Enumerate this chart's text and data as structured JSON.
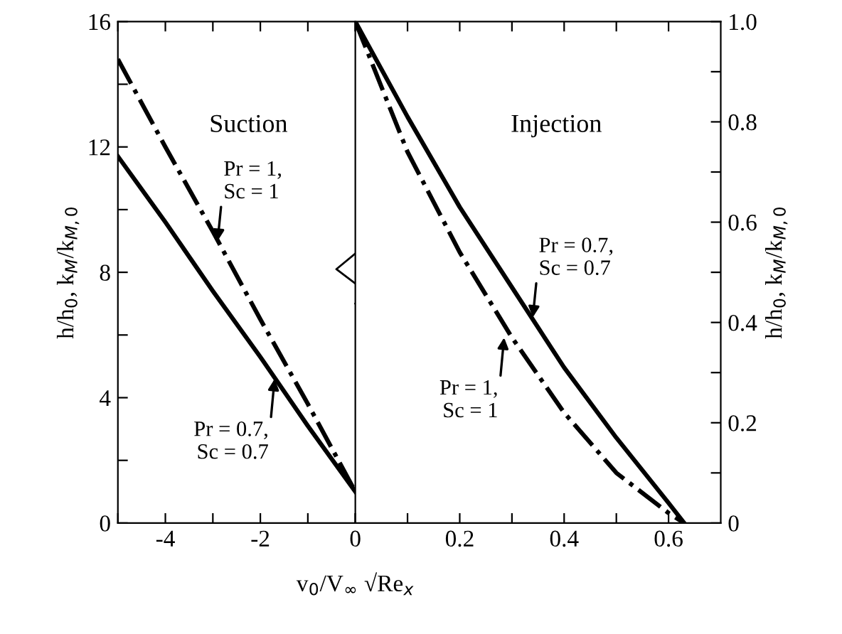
{
  "chart_data": [
    {
      "type": "line",
      "xlabel": "v$_{0}$/V$_{∞}$ √Re$_{x}$",
      "ylabel": "h/h$_{0}$, k$_{M}$/k$_{M,0}$",
      "xlim": [
        -5,
        0
      ],
      "ylim": [
        0,
        16
      ],
      "xticks": [
        {
          "value": -5,
          "label": null
        },
        -4,
        {
          "value": -3,
          "label": null
        },
        -2,
        {
          "value": -1,
          "label": null
        },
        0
      ],
      "yticks": [
        0,
        {
          "value": 2,
          "label": null
        },
        4,
        {
          "value": 6,
          "label": null
        },
        8,
        {
          "value": 10,
          "label": null
        },
        12,
        {
          "value": 14,
          "label": null
        },
        16
      ],
      "x": [
        -5,
        -4,
        -3,
        -2,
        -1,
        0
      ],
      "series": [
        {
          "color": "#000000",
          "line_style": "dashdot",
          "values": [
            14.8,
            12.0,
            9.3,
            6.5,
            3.8,
            1.0
          ]
        },
        {
          "color": "#000000",
          "line_style": "solid",
          "values": [
            11.7,
            9.6,
            7.4,
            5.3,
            3.1,
            1.0
          ]
        }
      ],
      "annotations": [
        "Suction",
        {
          "text": "Pr = 1,\nSc = 1",
          "x": -2.9,
          "y": 9.0
        },
        {
          "text": "Pr = 0.7,\nSc = 0.7",
          "x": -1.7,
          "y": 4.6
        }
      ],
      "grid": false,
      "legend": false
    },
    {
      "type": "line",
      "ylabel": "h/h$_{0}$, k$_{M}$/k$_{M,0}$",
      "xlim": [
        0,
        0.7
      ],
      "ylim": [
        0,
        1
      ],
      "xticks": [
        {
          "value": 0,
          "label": null
        },
        {
          "value": 0.1,
          "label": null
        },
        0.2,
        {
          "value": 0.3,
          "label": null
        },
        0.4,
        {
          "value": 0.5,
          "label": null
        },
        0.6
      ],
      "yticks": [
        0,
        {
          "value": 0.1,
          "label": null
        },
        0.2,
        {
          "value": 0.3,
          "label": null
        },
        0.4,
        {
          "value": 0.5,
          "label": null
        },
        0.6,
        {
          "value": 0.7,
          "label": null
        },
        0.8,
        {
          "value": 0.9,
          "label": null
        },
        {
          "value": 1.0,
          "label": "1.0"
        }
      ],
      "x": [
        0,
        0.1,
        0.2,
        0.3,
        0.4,
        0.5,
        0.6,
        0.63
      ],
      "series": [
        {
          "color": "#000000",
          "line_style": "solid",
          "values": [
            1.0,
            0.81,
            0.63,
            0.47,
            0.31,
            0.17,
            0.04,
            0
          ]
        },
        {
          "color": "#000000",
          "line_style": "dashdot",
          "values": [
            1.0,
            0.74,
            0.54,
            0.37,
            0.22,
            0.1,
            0.02,
            0
          ]
        }
      ],
      "annotations": [
        "Injection",
        {
          "text": "Pr = 0.7,\nSc = 0.7",
          "x": 0.34,
          "y": 0.41
        },
        {
          "text": "Pr = 1,\nSc = 1",
          "x": 0.285,
          "y": 0.37
        }
      ],
      "grid": false,
      "legend": false
    }
  ]
}
